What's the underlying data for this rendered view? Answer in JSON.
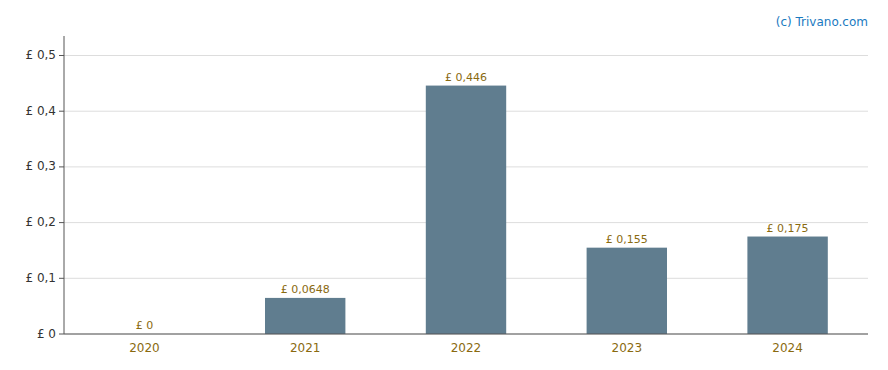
{
  "chart_data": {
    "type": "bar",
    "annotation": "(c) Trivano.com",
    "categories": [
      "2020",
      "2021",
      "2022",
      "2023",
      "2024"
    ],
    "values": [
      0,
      0.0648,
      0.446,
      0.155,
      0.175
    ],
    "value_labels": [
      "£ 0",
      "£ 0,0648",
      "£ 0,446",
      "£ 0,155",
      "£ 0,175"
    ],
    "color": "#607d8f",
    "ylim": [
      0,
      0.535
    ],
    "yticks": [
      {
        "value": 0,
        "label": "£ 0"
      },
      {
        "value": 0.1,
        "label": "£ 0,1"
      },
      {
        "value": 0.2,
        "label": "£ 0,2"
      },
      {
        "value": 0.3,
        "label": "£ 0,3"
      },
      {
        "value": 0.4,
        "label": "£ 0,4"
      },
      {
        "value": 0.5,
        "label": "£ 0,5"
      }
    ],
    "grid": true,
    "data_labels": true
  }
}
